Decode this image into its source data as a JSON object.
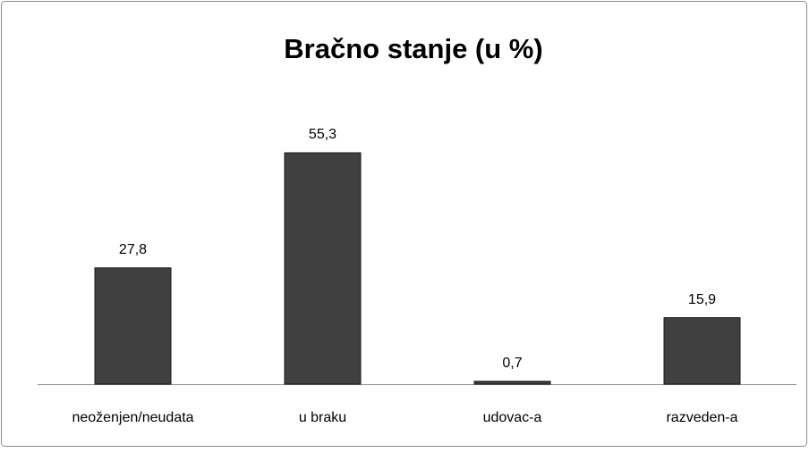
{
  "chart_data": {
    "type": "bar",
    "title": "Bračno stanje (u %)",
    "categories": [
      "neoženjen/neudata",
      "u braku",
      "udovac-a",
      "razveden-a"
    ],
    "values": [
      27.8,
      55.3,
      0.7,
      15.9
    ],
    "value_labels": [
      "27,8",
      "55,3",
      "0,7",
      "15,9"
    ],
    "color": "#404040"
  }
}
